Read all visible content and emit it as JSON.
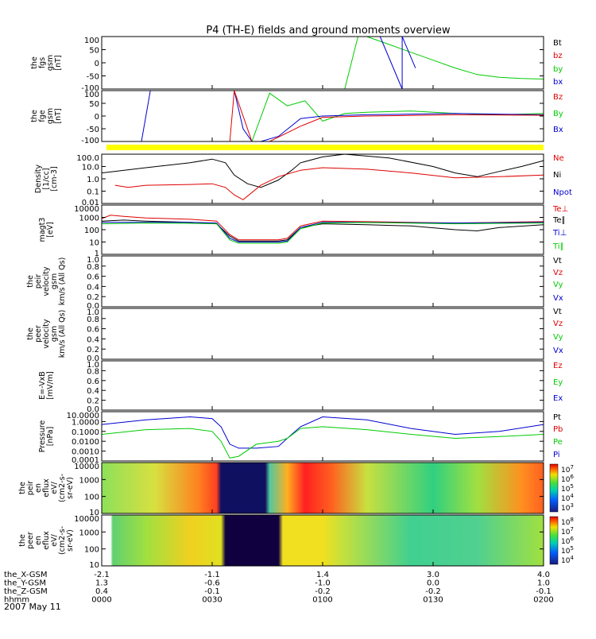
{
  "title": "P4 (TH-E) fields and ground moments overview",
  "date_label": "2007 May 11",
  "xaxis_rows": [
    {
      "name": "the_X-GSM",
      "values": [
        "-2.1",
        "-1.1",
        "1.4",
        "3.0",
        "4.0"
      ]
    },
    {
      "name": "the_Y-GSM",
      "values": [
        "1.3",
        "-0.6",
        "-1.0",
        "0.0",
        "1.0"
      ]
    },
    {
      "name": "the_Z-GSM",
      "values": [
        "0.4",
        "-0.1",
        "-0.2",
        "-0.2",
        "-0.1"
      ]
    },
    {
      "name": "hhmm",
      "values": [
        "0000",
        "0030",
        "0100",
        "0130",
        "0200"
      ]
    }
  ],
  "colors": {
    "black": "#000000",
    "red": "#e00000",
    "green": "#00cc00",
    "blue": "#0000d0",
    "yellow": "#ffff00"
  },
  "chart_data": [
    {
      "type": "line",
      "id": "fgs",
      "ylabel": [
        "the",
        "fgs",
        "gsm",
        "[nT]"
      ],
      "yticks": [
        "100",
        "50",
        "0",
        "-50",
        "-100"
      ],
      "ylim": [
        -100,
        100
      ],
      "legend": [
        {
          "name": "Bt",
          "color": "#000000"
        },
        {
          "name": "bz",
          "color": "#e00000"
        },
        {
          "name": "by",
          "color": "#00cc00"
        },
        {
          "name": "bx",
          "color": "#0000d0"
        }
      ],
      "series": [
        {
          "name": "by",
          "color": "#00cc00",
          "x": [
            0.55,
            0.58,
            0.6,
            0.65,
            0.7,
            0.75,
            0.8,
            0.85,
            0.9,
            0.95,
            1.0
          ],
          "y": [
            -100,
            100,
            100,
            70,
            40,
            10,
            -20,
            -45,
            -55,
            -60,
            -62
          ]
        },
        {
          "name": "bx",
          "color": "#0000d0",
          "x": [
            0.63,
            0.68,
            0.68,
            0.71
          ],
          "y": [
            100,
            -100,
            100,
            -20
          ]
        }
      ]
    },
    {
      "type": "line",
      "id": "fgs_raw",
      "ylabel": [
        "the",
        "fge",
        "gsm",
        "[nT]"
      ],
      "yticks": [
        "100",
        "50",
        "0",
        "-50",
        "-100"
      ],
      "ylim": [
        -100,
        100
      ],
      "legend": [
        {
          "name": "Bz",
          "color": "#e00000"
        },
        {
          "name": "By",
          "color": "#00cc00"
        },
        {
          "name": "Bx",
          "color": "#0000d0"
        }
      ],
      "series": [
        {
          "name": "By",
          "color": "#00cc00",
          "x": [
            0.3,
            0.34,
            0.38,
            0.42,
            0.46,
            0.5,
            0.55,
            0.6,
            0.7,
            0.8,
            0.9,
            1.0
          ],
          "y": [
            -100,
            -100,
            90,
            40,
            60,
            -20,
            10,
            15,
            20,
            10,
            5,
            10
          ]
        },
        {
          "name": "Bx",
          "color": "#0000d0",
          "x": [
            0.09,
            0.11,
            0.3,
            0.32,
            0.34,
            0.36,
            0.4,
            0.45,
            0.5,
            0.6,
            0.8,
            1.0
          ],
          "y": [
            -100,
            100,
            100,
            -50,
            -100,
            -100,
            -80,
            -10,
            0,
            5,
            10,
            5
          ]
        },
        {
          "name": "Bz",
          "color": "#e00000",
          "x": [
            0.29,
            0.3,
            0.34,
            0.38,
            0.45,
            0.5,
            0.6,
            0.8,
            1.0
          ],
          "y": [
            -100,
            100,
            -100,
            -100,
            -40,
            -5,
            0,
            5,
            3
          ]
        }
      ]
    },
    {
      "type": "line",
      "id": "density",
      "ylabel": [
        "Density",
        "[1/cc]",
        "[cm-3]"
      ],
      "yticks": [
        "100.0",
        "10.0",
        "1.0",
        "0.1",
        "0.01"
      ],
      "ylim": [
        0.01,
        100
      ],
      "log": true,
      "legend": [
        {
          "name": "Ne",
          "color": "#e00000"
        },
        {
          "name": "Ni",
          "color": "#000000"
        },
        {
          "name": "Npot",
          "color": "#0000d0"
        }
      ],
      "series": [
        {
          "name": "Ni",
          "color": "#000000",
          "x": [
            0,
            0.1,
            0.2,
            0.25,
            0.28,
            0.3,
            0.33,
            0.36,
            0.4,
            0.43,
            0.45,
            0.5,
            0.55,
            0.65,
            0.75,
            0.8,
            0.85,
            0.9,
            0.95,
            1.0
          ],
          "y": [
            3,
            8,
            20,
            40,
            20,
            2,
            0.4,
            0.2,
            0.8,
            5,
            20,
            60,
            100,
            50,
            10,
            3,
            1.5,
            4,
            10,
            30
          ]
        },
        {
          "name": "Ne",
          "color": "#e00000",
          "x": [
            0.03,
            0.06,
            0.1,
            0.2,
            0.25,
            0.28,
            0.3,
            0.32,
            0.36,
            0.4,
            0.45,
            0.5,
            0.6,
            0.7,
            0.8,
            0.9,
            1.0
          ],
          "y": [
            0.3,
            0.2,
            0.3,
            0.35,
            0.4,
            0.2,
            0.05,
            0.02,
            0.3,
            1.5,
            5,
            8,
            6,
            3,
            1.2,
            1.5,
            2
          ]
        }
      ]
    },
    {
      "type": "line",
      "id": "temperature",
      "ylabel": [
        "magt3",
        "[eV]"
      ],
      "yticks": [
        "10000",
        "1000",
        "100",
        "10",
        "1"
      ],
      "ylim": [
        1,
        10000
      ],
      "log": true,
      "legend": [
        {
          "name": "Te⊥",
          "color": "#e00000"
        },
        {
          "name": "Te∥",
          "color": "#000000"
        },
        {
          "name": "Ti⊥",
          "color": "#0000d0"
        },
        {
          "name": "Ti∥",
          "color": "#00cc00"
        }
      ],
      "series": [
        {
          "name": "Te⊥",
          "color": "#e00000",
          "x": [
            0,
            0.02,
            0.05,
            0.1,
            0.2,
            0.26,
            0.29,
            0.31,
            0.35,
            0.4,
            0.42,
            0.45,
            0.5,
            0.6,
            0.7,
            0.8,
            0.9,
            1.0
          ],
          "y": [
            800,
            1500,
            1200,
            900,
            700,
            500,
            40,
            15,
            15,
            15,
            20,
            200,
            500,
            450,
            400,
            350,
            400,
            450
          ]
        },
        {
          "name": "Te∥",
          "color": "#000000",
          "x": [
            0,
            0.05,
            0.1,
            0.2,
            0.26,
            0.29,
            0.31,
            0.35,
            0.4,
            0.42,
            0.45,
            0.5,
            0.6,
            0.7,
            0.8,
            0.85,
            0.9,
            1.0
          ],
          "y": [
            500,
            600,
            500,
            400,
            300,
            30,
            12,
            12,
            12,
            15,
            150,
            300,
            250,
            200,
            100,
            80,
            150,
            250
          ]
        },
        {
          "name": "Ti⊥",
          "color": "#0000d0",
          "x": [
            0,
            0.1,
            0.2,
            0.26,
            0.29,
            0.31,
            0.35,
            0.4,
            0.42,
            0.45,
            0.5,
            0.6,
            0.8,
            1.0
          ],
          "y": [
            400,
            400,
            400,
            350,
            20,
            10,
            10,
            10,
            12,
            150,
            400,
            400,
            350,
            400
          ]
        },
        {
          "name": "Ti∥",
          "color": "#00cc00",
          "x": [
            0,
            0.1,
            0.2,
            0.26,
            0.29,
            0.31,
            0.35,
            0.4,
            0.42,
            0.45,
            0.5,
            0.6,
            0.8,
            1.0
          ],
          "y": [
            300,
            350,
            330,
            300,
            15,
            8,
            8,
            8,
            10,
            120,
            350,
            380,
            300,
            350
          ]
        }
      ]
    },
    {
      "type": "line",
      "id": "peir_velocity",
      "ylabel": [
        "the",
        "peir",
        "velocity",
        "gsm",
        "km/s (All Qs)"
      ],
      "yticks": [
        "1.0",
        "0.8",
        "0.6",
        "0.4",
        "0.2",
        "0.0"
      ],
      "ylim": [
        0,
        1
      ],
      "legend": [
        {
          "name": "Vt",
          "color": "#000000"
        },
        {
          "name": "Vz",
          "color": "#e00000"
        },
        {
          "name": "Vy",
          "color": "#00cc00"
        },
        {
          "name": "Vx",
          "color": "#0000d0"
        }
      ],
      "series": []
    },
    {
      "type": "line",
      "id": "peer_velocity",
      "ylabel": [
        "the",
        "peer",
        "velocity",
        "gsm",
        "km/s (All Qs)"
      ],
      "yticks": [
        "1.0",
        "0.8",
        "0.6",
        "0.4",
        "0.2",
        "0.0"
      ],
      "ylim": [
        0,
        1
      ],
      "legend": [
        {
          "name": "Vt",
          "color": "#000000"
        },
        {
          "name": "Vz",
          "color": "#e00000"
        },
        {
          "name": "Vy",
          "color": "#00cc00"
        },
        {
          "name": "Vx",
          "color": "#0000d0"
        }
      ],
      "series": []
    },
    {
      "type": "line",
      "id": "efield",
      "ylabel": [
        "E=-VxB",
        "[mV/m]"
      ],
      "yticks": [
        "1.0",
        "0.8",
        "0.6",
        "0.4",
        "0.2",
        "0.0"
      ],
      "ylim": [
        0,
        1
      ],
      "legend": [
        {
          "name": "Ez",
          "color": "#e00000"
        },
        {
          "name": "Ey",
          "color": "#00cc00"
        },
        {
          "name": "Ex",
          "color": "#0000d0"
        }
      ],
      "series": []
    },
    {
      "type": "line",
      "id": "pressure",
      "ylabel": [
        "Pressure",
        "[nPa]"
      ],
      "yticks": [
        "10.0000",
        "1.0000",
        "0.1000",
        "0.0100",
        "0.0010",
        "0.0001"
      ],
      "ylim": [
        0.0001,
        10
      ],
      "log": true,
      "legend": [
        {
          "name": "Pt",
          "color": "#000000"
        },
        {
          "name": "Pb",
          "color": "#e00000"
        },
        {
          "name": "Pe",
          "color": "#00cc00"
        },
        {
          "name": "Pi",
          "color": "#0000d0"
        }
      ],
      "series": [
        {
          "name": "Pi",
          "color": "#0000d0",
          "x": [
            0,
            0.1,
            0.2,
            0.25,
            0.27,
            0.29,
            0.31,
            0.35,
            0.4,
            0.42,
            0.45,
            0.5,
            0.6,
            0.7,
            0.8,
            0.9,
            1.0
          ],
          "y": [
            0.5,
            1.5,
            3,
            2,
            0.3,
            0.005,
            0.002,
            0.002,
            0.003,
            0.02,
            0.3,
            3,
            1.5,
            0.2,
            0.05,
            0.1,
            0.5
          ]
        },
        {
          "name": "Pe",
          "color": "#00cc00",
          "x": [
            0,
            0.1,
            0.2,
            0.25,
            0.27,
            0.29,
            0.31,
            0.35,
            0.4,
            0.42,
            0.45,
            0.5,
            0.6,
            0.7,
            0.8,
            0.9,
            1.0
          ],
          "y": [
            0.05,
            0.15,
            0.2,
            0.1,
            0.01,
            0.0002,
            0.0003,
            0.005,
            0.01,
            0.02,
            0.2,
            0.3,
            0.15,
            0.05,
            0.02,
            0.03,
            0.05
          ]
        }
      ]
    },
    {
      "type": "heatmap",
      "id": "peir_spec",
      "ylabel": [
        "the",
        "peir",
        "en",
        "eflux",
        "eV/",
        "(cm2-s-",
        "sr-eV)"
      ],
      "yticks": [
        "10000",
        "1000",
        "100",
        "10"
      ],
      "ylim": [
        10,
        20000
      ],
      "log": true,
      "colorbar_ticks": [
        "10^7",
        "10^6",
        "10^5",
        "10^4",
        "10^3"
      ]
    },
    {
      "type": "heatmap",
      "id": "peer_spec",
      "ylabel": [
        "the",
        "peer",
        "en",
        "eflux",
        "eV/",
        "(cm2-s-",
        "sr-eV)"
      ],
      "yticks": [
        "10000",
        "1000",
        "100",
        "10"
      ],
      "ylim": [
        10,
        20000
      ],
      "log": true,
      "colorbar_ticks": [
        "10^8",
        "10^7",
        "10^6",
        "10^5",
        "10^4"
      ]
    }
  ]
}
